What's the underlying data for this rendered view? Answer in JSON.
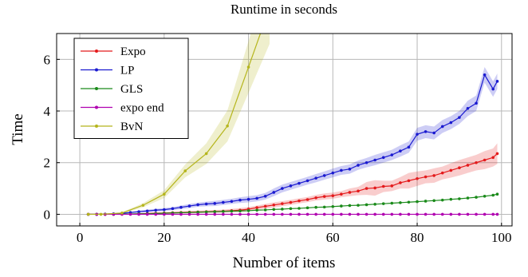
{
  "chart_data": {
    "type": "line",
    "title": "Runtime in seconds",
    "xlabel": "Number of items",
    "ylabel": "Time",
    "xlim": [
      0,
      100
    ],
    "ylim": [
      -0.45,
      7
    ],
    "xticks": [
      0,
      20,
      40,
      60,
      80,
      100
    ],
    "yticks": [
      0,
      2,
      4,
      6
    ],
    "grid": true,
    "legend_position": "top-left",
    "series": [
      {
        "name": "Expo",
        "color": "#e41a1c",
        "x": [
          2,
          4,
          6,
          8,
          10,
          12,
          14,
          16,
          18,
          20,
          22,
          24,
          26,
          28,
          30,
          32,
          34,
          36,
          38,
          40,
          42,
          44,
          46,
          48,
          50,
          52,
          54,
          56,
          58,
          60,
          62,
          64,
          66,
          68,
          70,
          72,
          74,
          76,
          78,
          80,
          82,
          84,
          86,
          88,
          90,
          92,
          94,
          96,
          98,
          99
        ],
        "y": [
          0,
          0,
          0,
          0,
          0.01,
          0.01,
          0.02,
          0.03,
          0.04,
          0.05,
          0.06,
          0.07,
          0.08,
          0.09,
          0.1,
          0.11,
          0.12,
          0.14,
          0.16,
          0.2,
          0.26,
          0.31,
          0.36,
          0.41,
          0.46,
          0.52,
          0.57,
          0.64,
          0.69,
          0.72,
          0.78,
          0.85,
          0.9,
          1.0,
          1.02,
          1.08,
          1.1,
          1.22,
          1.3,
          1.38,
          1.45,
          1.5,
          1.6,
          1.7,
          1.8,
          1.9,
          2.0,
          2.1,
          2.2,
          2.35
        ],
        "band": [
          0,
          0,
          0,
          0,
          0.02,
          0.02,
          0.02,
          0.03,
          0.03,
          0.03,
          0.04,
          0.04,
          0.05,
          0.05,
          0.05,
          0.06,
          0.06,
          0.07,
          0.08,
          0.08,
          0.08,
          0.09,
          0.1,
          0.1,
          0.1,
          0.1,
          0.1,
          0.11,
          0.12,
          0.12,
          0.12,
          0.15,
          0.16,
          0.25,
          0.3,
          0.22,
          0.2,
          0.22,
          0.3,
          0.28,
          0.25,
          0.28,
          0.25,
          0.28,
          0.3,
          0.3,
          0.3,
          0.35,
          0.35,
          0.4
        ]
      },
      {
        "name": "LP",
        "color": "#1a1ad0",
        "x": [
          2,
          4,
          6,
          8,
          10,
          12,
          14,
          16,
          18,
          20,
          22,
          24,
          26,
          28,
          30,
          32,
          34,
          36,
          38,
          40,
          42,
          44,
          46,
          48,
          50,
          52,
          54,
          56,
          58,
          60,
          62,
          64,
          66,
          68,
          70,
          72,
          74,
          76,
          78,
          80,
          82,
          84,
          86,
          88,
          90,
          92,
          94,
          96,
          98,
          99
        ],
        "y": [
          0,
          0,
          0.01,
          0.02,
          0.04,
          0.07,
          0.1,
          0.13,
          0.16,
          0.18,
          0.22,
          0.27,
          0.32,
          0.37,
          0.4,
          0.42,
          0.46,
          0.5,
          0.55,
          0.58,
          0.62,
          0.7,
          0.85,
          1.0,
          1.1,
          1.2,
          1.3,
          1.4,
          1.5,
          1.6,
          1.7,
          1.75,
          1.9,
          2.0,
          2.1,
          2.2,
          2.3,
          2.45,
          2.6,
          3.1,
          3.2,
          3.15,
          3.4,
          3.55,
          3.75,
          4.1,
          4.3,
          5.4,
          4.85,
          5.15
        ],
        "band": [
          0,
          0,
          0.01,
          0.02,
          0.02,
          0.03,
          0.04,
          0.05,
          0.05,
          0.06,
          0.06,
          0.07,
          0.08,
          0.08,
          0.09,
          0.1,
          0.1,
          0.1,
          0.11,
          0.12,
          0.12,
          0.13,
          0.15,
          0.15,
          0.15,
          0.15,
          0.15,
          0.16,
          0.16,
          0.17,
          0.17,
          0.18,
          0.18,
          0.18,
          0.2,
          0.2,
          0.2,
          0.22,
          0.22,
          0.25,
          0.25,
          0.25,
          0.25,
          0.25,
          0.25,
          0.3,
          0.3,
          0.3,
          0.3,
          0.3
        ]
      },
      {
        "name": "GLS",
        "color": "#1a8a1a",
        "x": [
          2,
          4,
          6,
          8,
          10,
          12,
          14,
          16,
          18,
          20,
          22,
          24,
          26,
          28,
          30,
          32,
          34,
          36,
          38,
          40,
          42,
          44,
          46,
          48,
          50,
          52,
          54,
          56,
          58,
          60,
          62,
          64,
          66,
          68,
          70,
          72,
          74,
          76,
          78,
          80,
          82,
          84,
          86,
          88,
          90,
          92,
          94,
          96,
          98,
          99
        ],
        "y": [
          0,
          0,
          0,
          0,
          0.01,
          0.01,
          0.02,
          0.02,
          0.03,
          0.04,
          0.05,
          0.06,
          0.07,
          0.08,
          0.09,
          0.1,
          0.11,
          0.12,
          0.13,
          0.14,
          0.16,
          0.17,
          0.19,
          0.2,
          0.22,
          0.23,
          0.25,
          0.27,
          0.28,
          0.3,
          0.32,
          0.34,
          0.35,
          0.37,
          0.39,
          0.41,
          0.43,
          0.45,
          0.47,
          0.49,
          0.51,
          0.53,
          0.55,
          0.58,
          0.6,
          0.63,
          0.66,
          0.7,
          0.74,
          0.78
        ],
        "band": []
      },
      {
        "name": "expo end",
        "color": "#b000b0",
        "x": [
          2,
          4,
          6,
          8,
          10,
          12,
          14,
          16,
          18,
          20,
          22,
          24,
          26,
          28,
          30,
          32,
          34,
          36,
          38,
          40,
          42,
          44,
          46,
          48,
          50,
          52,
          54,
          56,
          58,
          60,
          62,
          64,
          66,
          68,
          70,
          72,
          74,
          76,
          78,
          80,
          82,
          84,
          86,
          88,
          90,
          92,
          94,
          96,
          98,
          99
        ],
        "y": [
          0,
          0,
          0,
          0,
          0,
          0,
          0,
          0,
          0,
          0,
          0,
          0,
          0,
          0,
          0,
          0,
          0,
          0,
          0,
          0,
          0,
          0,
          0,
          0,
          0,
          0,
          0,
          0,
          0,
          0,
          0,
          0,
          0,
          0,
          0,
          0,
          0,
          0,
          0,
          0,
          0,
          0,
          0,
          0,
          0,
          0,
          0,
          0,
          0,
          0
        ],
        "band": []
      },
      {
        "name": "BvN",
        "color": "#b5b51c",
        "x": [
          2,
          5,
          10,
          15,
          20,
          25,
          30,
          35,
          40,
          45
        ],
        "y": [
          0,
          0,
          0.05,
          0.35,
          0.78,
          1.68,
          2.35,
          3.42,
          5.7,
          8.0
        ],
        "band": [
          0,
          0,
          0.03,
          0.08,
          0.15,
          0.25,
          0.4,
          0.6,
          1.0,
          1.4
        ]
      }
    ]
  }
}
